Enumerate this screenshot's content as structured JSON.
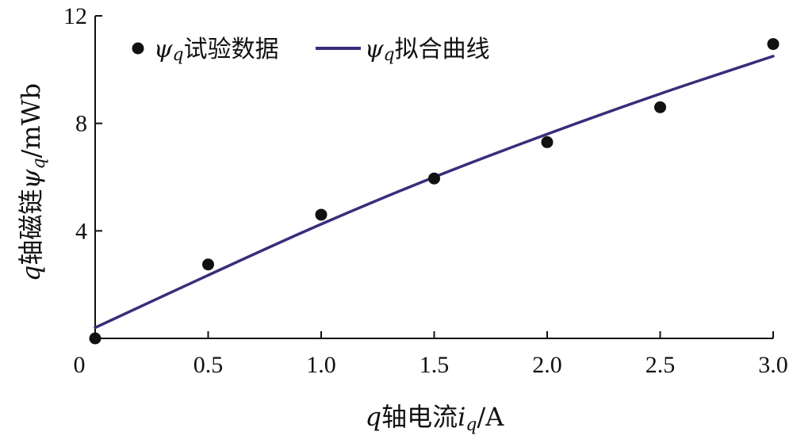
{
  "chart_data": {
    "type": "scatter",
    "xlabel": {
      "prefix": "q",
      "text": "轴电流",
      "symbol": "i",
      "sub": "q",
      "unit": "/A"
    },
    "ylabel": {
      "prefix": "q",
      "text": "轴磁链",
      "symbol": "ψ",
      "sub": "q",
      "unit": "/mWb"
    },
    "xlim": [
      0,
      3.0
    ],
    "ylim": [
      0,
      12
    ],
    "x_ticks": [
      {
        "value": 0,
        "label": "0"
      },
      {
        "value": 0.5,
        "label": "0.5"
      },
      {
        "value": 1.0,
        "label": "1.0"
      },
      {
        "value": 1.5,
        "label": "1.5"
      },
      {
        "value": 2.0,
        "label": "2.0"
      },
      {
        "value": 2.5,
        "label": "2.5"
      },
      {
        "value": 3.0,
        "label": "3.0"
      }
    ],
    "y_ticks": [
      {
        "value": 4,
        "label": "4"
      },
      {
        "value": 8,
        "label": "8"
      },
      {
        "value": 12,
        "label": "12"
      }
    ],
    "grid": false,
    "legend_position": "top-left",
    "series": [
      {
        "name": {
          "symbol": "ψ",
          "sub": "q",
          "text": "试验数据"
        },
        "kind": "scatter",
        "color": "#111111",
        "x": [
          0,
          0.5,
          1.0,
          1.5,
          2.0,
          2.5,
          3.0
        ],
        "y": [
          0.0,
          2.75,
          4.6,
          5.95,
          7.3,
          8.6,
          10.95
        ]
      },
      {
        "name": {
          "symbol": "ψ",
          "sub": "q",
          "text": "拟合曲线"
        },
        "kind": "line",
        "color": "#3a2d7a",
        "x": [
          0,
          0.5,
          1.0,
          1.5,
          2.0,
          2.5,
          3.0
        ],
        "y": [
          0.4,
          2.35,
          4.25,
          6.0,
          7.6,
          9.1,
          10.5
        ]
      }
    ]
  }
}
